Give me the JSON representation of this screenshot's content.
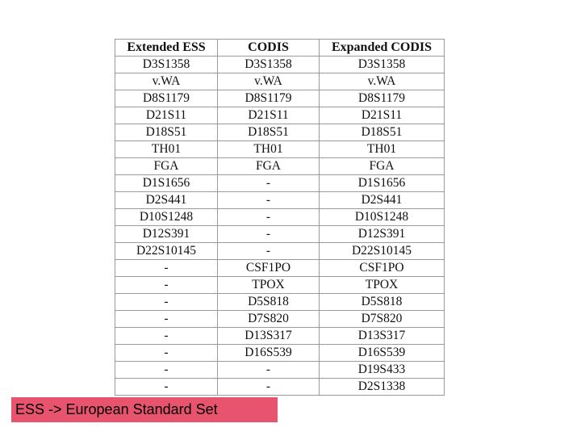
{
  "table": {
    "headers": [
      "Extended ESS",
      "CODIS",
      "Expanded CODIS"
    ],
    "rows": [
      [
        "D3S1358",
        "D3S1358",
        "D3S1358"
      ],
      [
        "v.WA",
        "v.WA",
        "v.WA"
      ],
      [
        "D8S1179",
        "D8S1179",
        "D8S1179"
      ],
      [
        "D21S11",
        "D21S11",
        "D21S11"
      ],
      [
        "D18S51",
        "D18S51",
        "D18S51"
      ],
      [
        "TH01",
        "TH01",
        "TH01"
      ],
      [
        "FGA",
        "FGA",
        "FGA"
      ],
      [
        "D1S1656",
        "-",
        "D1S1656"
      ],
      [
        "D2S441",
        "-",
        "D2S441"
      ],
      [
        "D10S1248",
        "-",
        "D10S1248"
      ],
      [
        "D12S391",
        "-",
        "D12S391"
      ],
      [
        "D22S10145",
        "-",
        "D22S10145"
      ],
      [
        "-",
        "CSF1PO",
        "CSF1PO"
      ],
      [
        "-",
        "TPOX",
        "TPOX"
      ],
      [
        "-",
        "D5S818",
        "D5S818"
      ],
      [
        "-",
        "D7S820",
        "D7S820"
      ],
      [
        "-",
        "D13S317",
        "D13S317"
      ],
      [
        "-",
        "D16S539",
        "D16S539"
      ],
      [
        "-",
        "-",
        "D19S433"
      ],
      [
        "-",
        "-",
        "D2S1338"
      ]
    ]
  },
  "footnote": {
    "text": "ESS -> European Standard Set",
    "background": "#e8536e"
  }
}
